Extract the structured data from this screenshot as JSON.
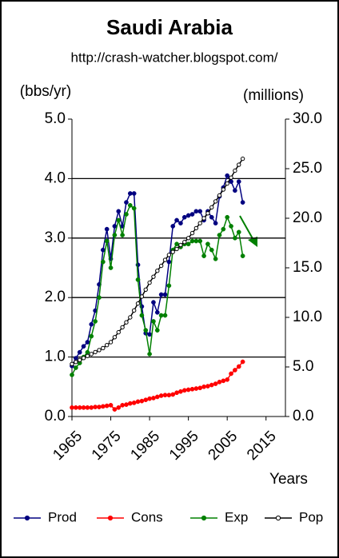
{
  "chart_data": {
    "type": "line",
    "title": "Saudi Arabia",
    "subtitle": "http://crash-watcher.blogspot.com/",
    "y_label": "(bbs/yr)",
    "y2_label": "(millions)",
    "x_label": "Years",
    "x": [
      1965,
      1966,
      1967,
      1968,
      1969,
      1970,
      1971,
      1972,
      1973,
      1974,
      1975,
      1976,
      1977,
      1978,
      1979,
      1980,
      1981,
      1982,
      1983,
      1984,
      1985,
      1986,
      1987,
      1988,
      1989,
      1990,
      1991,
      1992,
      1993,
      1994,
      1995,
      1996,
      1997,
      1998,
      1999,
      2000,
      2001,
      2002,
      2003,
      2004,
      2005,
      2006,
      2007,
      2008,
      2009
    ],
    "series": [
      {
        "name": "Prod",
        "color": "#000080",
        "values": [
          0.85,
          0.98,
          1.08,
          1.18,
          1.25,
          1.55,
          1.78,
          2.22,
          2.8,
          3.15,
          2.65,
          3.2,
          3.45,
          3.2,
          3.6,
          3.75,
          3.75,
          2.55,
          1.85,
          1.4,
          1.38,
          1.92,
          1.75,
          2.05,
          2.05,
          2.6,
          3.2,
          3.3,
          3.25,
          3.35,
          3.38,
          3.4,
          3.45,
          3.45,
          3.3,
          3.45,
          3.35,
          3.25,
          3.7,
          3.85,
          4.05,
          3.95,
          3.8,
          3.95,
          3.6
        ]
      },
      {
        "name": "Cons",
        "color": "#ff0000",
        "values": [
          0.15,
          0.15,
          0.15,
          0.15,
          0.15,
          0.15,
          0.16,
          0.16,
          0.17,
          0.18,
          0.19,
          0.12,
          0.15,
          0.19,
          0.2,
          0.22,
          0.23,
          0.25,
          0.26,
          0.28,
          0.3,
          0.31,
          0.33,
          0.35,
          0.36,
          0.36,
          0.37,
          0.4,
          0.42,
          0.44,
          0.45,
          0.46,
          0.47,
          0.48,
          0.5,
          0.51,
          0.53,
          0.55,
          0.58,
          0.6,
          0.62,
          0.72,
          0.78,
          0.84,
          0.92
        ]
      },
      {
        "name": "Exp",
        "color": "#008000",
        "values": [
          0.7,
          0.82,
          0.9,
          1.0,
          1.08,
          1.35,
          1.6,
          2.0,
          2.6,
          2.95,
          2.5,
          3.05,
          3.3,
          3.05,
          3.4,
          3.55,
          3.5,
          2.3,
          1.7,
          1.45,
          1.05,
          1.6,
          1.45,
          1.7,
          1.7,
          2.2,
          2.8,
          2.9,
          2.85,
          2.9,
          2.9,
          2.95,
          2.95,
          2.95,
          2.7,
          2.9,
          2.8,
          2.65,
          3.05,
          3.15,
          3.35,
          3.2,
          3.0,
          3.1,
          2.7
        ]
      },
      {
        "name": "Pop",
        "color": "#000000",
        "axis": "y2",
        "values": [
          5.3,
          5.5,
          5.7,
          5.9,
          6.1,
          6.3,
          6.5,
          6.7,
          6.9,
          7.2,
          7.5,
          8.0,
          8.5,
          9.0,
          9.5,
          10.0,
          10.7,
          11.4,
          12.1,
          12.8,
          13.5,
          14.1,
          14.7,
          15.2,
          15.8,
          16.3,
          16.6,
          16.9,
          17.3,
          17.6,
          18.0,
          18.5,
          19.0,
          19.5,
          20.0,
          20.5,
          21.1,
          21.7,
          22.3,
          22.9,
          23.5,
          24.1,
          24.8,
          25.4,
          26.0
        ]
      }
    ],
    "xlim": [
      1965,
      2020
    ],
    "xticks": [
      1965,
      1975,
      1985,
      1995,
      2005,
      2015
    ],
    "ylim": [
      0,
      5
    ],
    "yticks": [
      {
        "value": 0,
        "label": "0.0"
      },
      {
        "value": 1,
        "label": "1.0"
      },
      {
        "value": 2,
        "label": "2.0"
      },
      {
        "value": 3,
        "label": "3.0"
      },
      {
        "value": 4,
        "label": "4.0"
      },
      {
        "value": 5,
        "label": "5.0"
      }
    ],
    "y2lim": [
      0,
      30
    ],
    "y2ticks": [
      {
        "value": 0,
        "label": "0.0"
      },
      {
        "value": 5,
        "label": "5.0"
      },
      {
        "value": 10,
        "label": "10.0"
      },
      {
        "value": 15,
        "label": "15.0"
      },
      {
        "value": 20,
        "label": "20.0"
      },
      {
        "value": 25,
        "label": "25.0"
      },
      {
        "value": 30,
        "label": "30.0"
      }
    ],
    "grid": true,
    "legend": "bottom"
  }
}
